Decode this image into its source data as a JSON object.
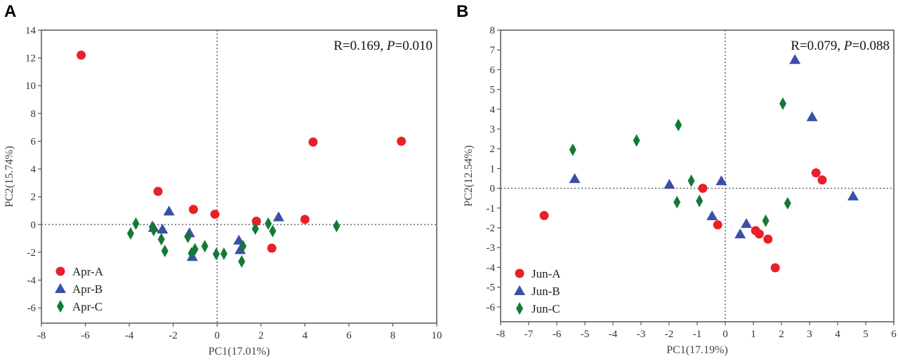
{
  "chart_data": [
    {
      "type": "scatter",
      "panel_label": "A",
      "xlabel": "PC1(17.01%)",
      "ylabel": "PC2(15.74%)",
      "xlim": [
        -8,
        10
      ],
      "ylim": [
        -7.1,
        14
      ],
      "xticks": [
        -8,
        -6,
        -4,
        -2,
        0,
        2,
        4,
        6,
        8,
        10
      ],
      "yticks": [
        -6,
        -4,
        -2,
        0,
        2,
        4,
        6,
        8,
        10,
        12,
        14
      ],
      "reference_lines": {
        "x": 0,
        "y": 0
      },
      "annotation": {
        "r_text": "R=0.169, ",
        "p_label": "P",
        "p_text": "=0.010"
      },
      "legend_position": "bottom-left",
      "series": [
        {
          "name": "Apr-A",
          "marker": "circle",
          "color": "#e8202a",
          "points": [
            [
              -6.19,
              12.2
            ],
            [
              -2.69,
              2.39
            ],
            [
              -1.08,
              1.09
            ],
            [
              -0.1,
              0.74
            ],
            [
              1.79,
              0.24
            ],
            [
              4.0,
              0.37
            ],
            [
              2.49,
              -1.7
            ],
            [
              4.37,
              5.94
            ],
            [
              8.39,
              6.0
            ]
          ]
        },
        {
          "name": "Apr-B",
          "marker": "triangle",
          "color": "#3a4fa8",
          "points": [
            [
              -2.19,
              0.96
            ],
            [
              2.8,
              0.54
            ],
            [
              -2.89,
              -0.22
            ],
            [
              -2.49,
              -0.34
            ],
            [
              -1.26,
              -0.61
            ],
            [
              0.99,
              -1.14
            ],
            [
              1.05,
              -1.82
            ],
            [
              -1.13,
              -2.32
            ]
          ]
        },
        {
          "name": "Apr-C",
          "marker": "diamond",
          "color": "#137a35",
          "points": [
            [
              -3.94,
              -0.64
            ],
            [
              -3.7,
              0.07
            ],
            [
              -2.95,
              -0.17
            ],
            [
              -2.89,
              -0.39
            ],
            [
              -2.54,
              -1.06
            ],
            [
              -2.38,
              -1.9
            ],
            [
              -1.33,
              -0.89
            ],
            [
              -1.17,
              -2.07
            ],
            [
              -1.01,
              -1.78
            ],
            [
              -0.56,
              -1.56
            ],
            [
              -0.04,
              -2.12
            ],
            [
              0.31,
              -2.1
            ],
            [
              1.18,
              -1.56
            ],
            [
              1.12,
              -2.66
            ],
            [
              1.74,
              -0.3
            ],
            [
              2.33,
              0.07
            ],
            [
              2.53,
              -0.47
            ],
            [
              5.44,
              -0.1
            ]
          ]
        }
      ]
    },
    {
      "type": "scatter",
      "panel_label": "B",
      "xlabel": "PC1(17.19%)",
      "ylabel": "PC2(12.54%)",
      "xlim": [
        -8,
        6
      ],
      "ylim": [
        -6.75,
        8
      ],
      "xticks": [
        -8,
        -7,
        -6,
        -5,
        -4,
        -3,
        -2,
        -1,
        0,
        1,
        2,
        3,
        4,
        5,
        6
      ],
      "yticks": [
        -6,
        -5,
        -4,
        -3,
        -2,
        -1,
        0,
        1,
        2,
        3,
        4,
        5,
        6,
        7,
        8
      ],
      "reference_lines": {
        "x": 0,
        "y": 0
      },
      "annotation": {
        "r_text": "R=0.079, ",
        "p_label": "P",
        "p_text": "=0.088"
      },
      "legend_position": "bottom-left",
      "series": [
        {
          "name": "Jun-A",
          "marker": "circle",
          "color": "#e8202a",
          "points": [
            [
              -6.45,
              -1.38
            ],
            [
              -0.8,
              0.0
            ],
            [
              -0.27,
              -1.85
            ],
            [
              1.08,
              -2.14
            ],
            [
              1.21,
              -2.31
            ],
            [
              1.52,
              -2.57
            ],
            [
              1.78,
              -4.02
            ],
            [
              3.23,
              0.78
            ],
            [
              3.45,
              0.42
            ]
          ]
        },
        {
          "name": "Jun-B",
          "marker": "triangle",
          "color": "#3a4fa8",
          "points": [
            [
              -5.36,
              0.48
            ],
            [
              -1.99,
              0.19
            ],
            [
              -0.14,
              0.37
            ],
            [
              -0.47,
              -1.4
            ],
            [
              0.53,
              -2.32
            ],
            [
              0.75,
              -1.79
            ],
            [
              2.48,
              6.5
            ],
            [
              3.09,
              3.61
            ],
            [
              4.55,
              -0.4
            ]
          ]
        },
        {
          "name": "Jun-C",
          "marker": "diamond",
          "color": "#137a35",
          "points": [
            [
              -5.43,
              1.95
            ],
            [
              -3.16,
              2.42
            ],
            [
              -1.67,
              3.2
            ],
            [
              -1.21,
              0.38
            ],
            [
              -1.72,
              -0.7
            ],
            [
              -0.92,
              -0.64
            ],
            [
              1.44,
              -1.64
            ],
            [
              2.05,
              4.28
            ],
            [
              2.22,
              -0.76
            ]
          ]
        }
      ]
    }
  ]
}
